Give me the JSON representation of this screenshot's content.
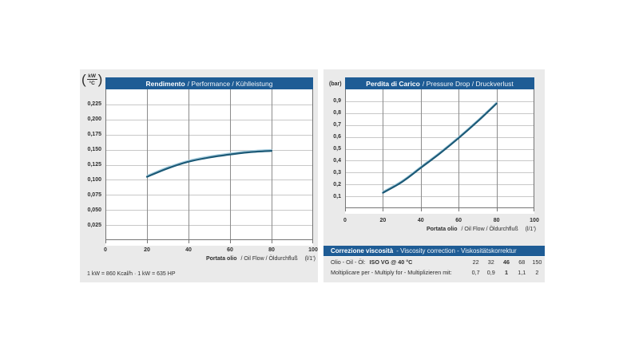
{
  "colors": {
    "page_bg": "#ffffff",
    "panel_bg": "#eaeaea",
    "header_blue": "#1e5c95",
    "curve": "#1c5a77",
    "curve_highlight": "#a9cfe0",
    "grid_vertical": "#8c8c8c",
    "grid_horizontal": "#c8c8c8",
    "plot_border": "#757575",
    "text": "#2e2e2e"
  },
  "left_chart": {
    "unit_numerator": "kW",
    "unit_denominator": "°C",
    "title_bold": "Rendimento",
    "title_rest": "/ Performance / Kühlleistung",
    "xlabel_bold": "Portata olio",
    "xlabel_rest": "/ Oil Flow / Öldurchfluß",
    "xlabel_unit": "(l/1')",
    "footnote": "1 kW = 860 Kcal/h · 1 kW = 635 HP"
  },
  "right_chart": {
    "unit": "(bar)",
    "title_bold": "Perdita di Carico",
    "title_rest": "/ Pressure Drop / Druckverlust",
    "xlabel_bold": "Portata olio",
    "xlabel_rest": "/ Oil Flow / Öldurchfluß",
    "xlabel_unit": "(l/1')"
  },
  "viscosity_table": {
    "header_bold": "Correzione viscosità",
    "header_rest": "- Viscosity correction - Viskositätskorrektur",
    "row1_label": "Olio - Oil - Öl:",
    "row1_label_bold": "ISO VG @ 40 °C",
    "row1_values": [
      "22",
      "32",
      "46",
      "68",
      "150"
    ],
    "row1_bold_index": 2,
    "row2_label": "Moltiplicare per - Multiply for - Multiplizieren mit:",
    "row2_values": [
      "0,7",
      "0,9",
      "1",
      "1,1",
      "2"
    ],
    "row2_bold_index": 2
  },
  "chart_data": [
    {
      "type": "line",
      "title": "Rendimento / Performance / Kühlleistung",
      "xlabel": "Portata olio / Oil Flow / Öldurchfluß (l/1')",
      "ylabel": "kW/°C",
      "x": [
        20,
        30,
        40,
        50,
        60,
        70,
        80
      ],
      "y": [
        0.105,
        0.119,
        0.13,
        0.137,
        0.142,
        0.146,
        0.148
      ],
      "xlim": [
        0,
        100
      ],
      "ylim": [
        0,
        0.25
      ],
      "xticks": [
        0,
        20,
        40,
        60,
        80,
        100
      ],
      "xtick_labels": [
        "0",
        "20",
        "40",
        "60",
        "80",
        "100"
      ],
      "yticks": [
        0.025,
        0.05,
        0.075,
        0.1,
        0.125,
        0.15,
        0.175,
        0.2,
        0.225
      ],
      "ytick_labels": [
        "0,025",
        "0,050",
        "0,075",
        "0,100",
        "0,125",
        "0,150",
        "0,175",
        "0,200",
        "0,225"
      ],
      "grid": true,
      "legend": null
    },
    {
      "type": "line",
      "title": "Perdita di Carico / Pressure Drop / Druckverlust",
      "xlabel": "Portata olio / Oil Flow / Öldurchfluß (l/1')",
      "ylabel": "bar",
      "x": [
        20,
        30,
        40,
        50,
        60,
        70,
        80
      ],
      "y": [
        0.13,
        0.22,
        0.34,
        0.46,
        0.59,
        0.73,
        0.88
      ],
      "xlim": [
        0,
        100
      ],
      "ylim": [
        0,
        1.0
      ],
      "xticks": [
        0,
        20,
        40,
        60,
        80,
        100
      ],
      "xtick_labels": [
        "0",
        "20",
        "40",
        "60",
        "80",
        "100"
      ],
      "yticks": [
        0.1,
        0.2,
        0.3,
        0.4,
        0.5,
        0.6,
        0.7,
        0.8,
        0.9
      ],
      "ytick_labels": [
        "0,1",
        "0,2",
        "0,3",
        "0,4",
        "0,5",
        "0,6",
        "0,7",
        "0,8",
        "0,9"
      ],
      "grid": true,
      "legend": null
    }
  ]
}
